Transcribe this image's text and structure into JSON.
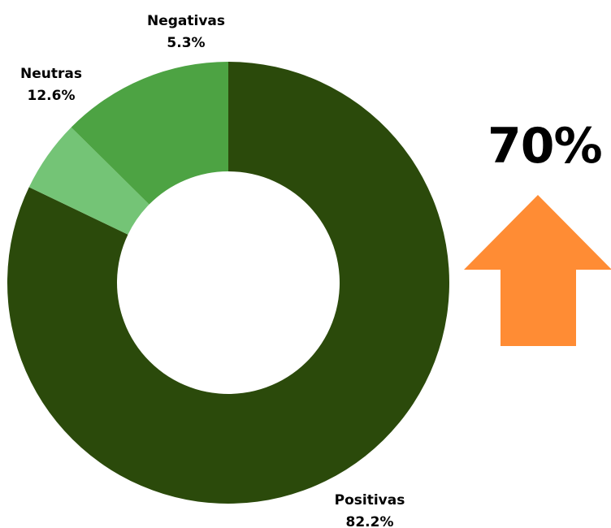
{
  "chart_data": {
    "type": "pie",
    "donut": true,
    "categories": [
      "Positivas",
      "Negativas",
      "Neutras"
    ],
    "values": [
      82.2,
      5.3,
      12.6
    ],
    "value_labels": [
      "82.2%",
      "5.3%",
      "12.6%"
    ],
    "colors": [
      "#2b4a0b",
      "#74c476",
      "#4da343"
    ],
    "start_angle": "top, clockwise from Positivas",
    "legend": "none (labels placed next to slices)"
  },
  "highlight": {
    "value": "70%",
    "indicator": "up-arrow",
    "arrow_color": "#ff8c34"
  }
}
